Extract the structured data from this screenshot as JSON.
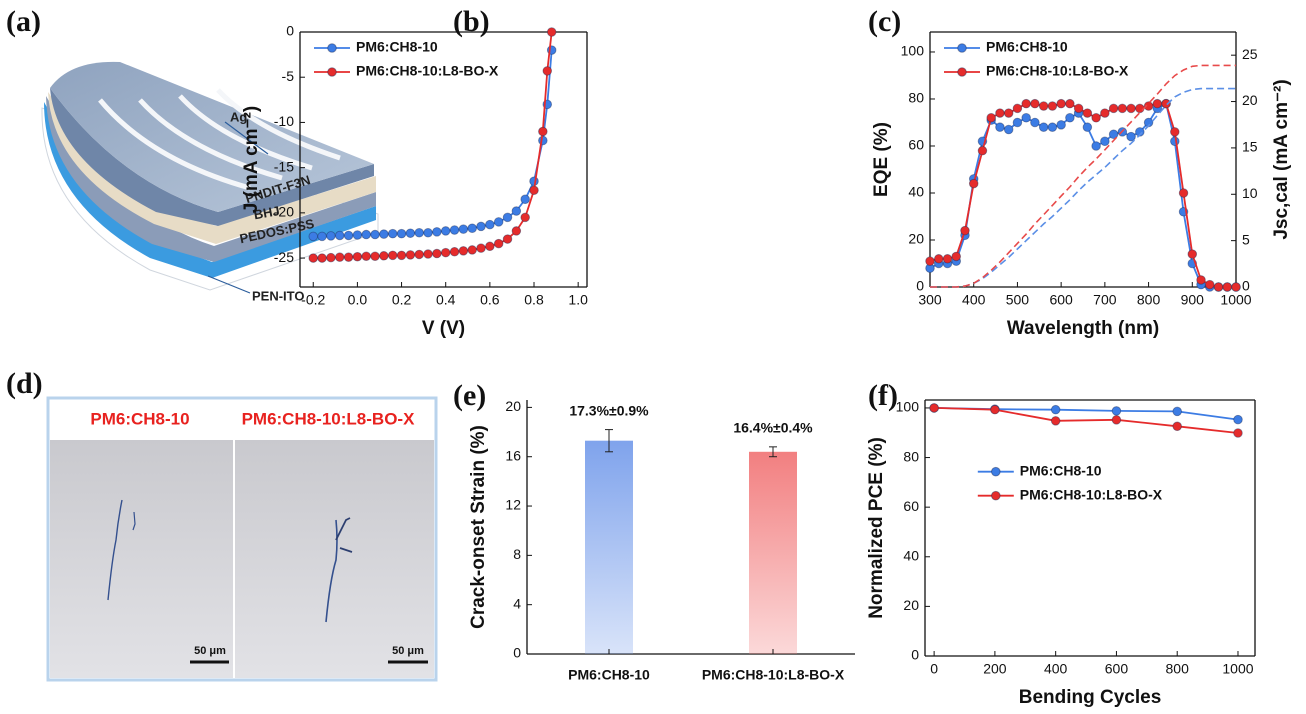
{
  "panel_labels": [
    "(a)",
    "(b)",
    "(c)",
    "(d)",
    "(e)",
    "(f)"
  ],
  "device_diagram": {
    "layers": [
      "Ag",
      "PNDIT-F3N",
      "BHJ",
      "PEDOS:PSS",
      "PEN-ITO"
    ]
  },
  "micrographs": [
    {
      "title": "PM6:CH8-10",
      "scale_bar": "50 μm"
    },
    {
      "title": "PM6:CH8-10:L8-BO-X",
      "scale_bar": "50 μm"
    }
  ],
  "chart_data": [
    {
      "type": "line",
      "x_label": "V (V)",
      "y_label": "J (mA cm⁻²)",
      "x": [
        -0.2,
        -0.16,
        -0.12,
        -0.08,
        -0.04,
        0,
        0.04,
        0.08,
        0.12,
        0.16,
        0.2,
        0.24,
        0.28,
        0.32,
        0.36,
        0.4,
        0.44,
        0.48,
        0.52,
        0.56,
        0.6,
        0.64,
        0.68,
        0.72,
        0.76,
        0.8,
        0.84,
        0.86,
        0.88
      ],
      "series": [
        {
          "name": "PM6:CH8-10",
          "color": "#3c7ce4",
          "values": [
            -22.6,
            -22.6,
            -22.55,
            -22.5,
            -22.5,
            -22.45,
            -22.4,
            -22.4,
            -22.35,
            -22.3,
            -22.3,
            -22.25,
            -22.2,
            -22.2,
            -22.1,
            -22.0,
            -21.9,
            -21.8,
            -21.7,
            -21.5,
            -21.3,
            -21.0,
            -20.5,
            -19.8,
            -18.5,
            -16.5,
            -12.0,
            -8.0,
            -2.0
          ]
        },
        {
          "name": "PM6:CH8-10:L8-BO-X",
          "color": "#e52b2b",
          "values": [
            -25.0,
            -25.0,
            -24.95,
            -24.9,
            -24.9,
            -24.85,
            -24.8,
            -24.8,
            -24.75,
            -24.7,
            -24.7,
            -24.65,
            -24.6,
            -24.55,
            -24.5,
            -24.4,
            -24.3,
            -24.2,
            -24.1,
            -23.9,
            -23.7,
            -23.4,
            -22.9,
            -22.0,
            -20.5,
            -17.5,
            -11.0,
            -4.3,
            0
          ]
        }
      ],
      "xlim": [
        -0.26,
        1.04
      ],
      "ylim": [
        -28.2,
        0
      ],
      "xticks": [
        -0.2,
        {
          "value": 0,
          "label": "0.0"
        },
        0.2,
        0.4,
        0.6,
        0.8,
        {
          "value": 1,
          "label": "1.0"
        }
      ],
      "yticks": [
        0,
        -5,
        -10,
        -15,
        -20,
        -25
      ],
      "legend": "upper left"
    },
    {
      "type": "line",
      "x_label": "Wavelength (nm)",
      "y_label": "EQE (%)",
      "y2_label": "Jsc,cal (mA cm⁻²)",
      "x": [
        300,
        320,
        340,
        360,
        380,
        400,
        420,
        440,
        460,
        480,
        500,
        520,
        540,
        560,
        580,
        600,
        620,
        640,
        660,
        680,
        700,
        720,
        740,
        760,
        780,
        800,
        820,
        840,
        860,
        880,
        900,
        920,
        940,
        960,
        980,
        1000
      ],
      "series": [
        {
          "name": "PM6:CH8-10",
          "color": "#3c7ce4",
          "values": [
            8,
            10,
            10,
            11,
            22,
            46,
            62,
            71,
            68,
            67,
            70,
            72,
            70,
            68,
            68,
            69,
            72,
            74,
            68,
            60,
            62,
            65,
            66,
            64,
            66,
            70,
            76,
            78,
            62,
            32,
            10,
            1,
            0,
            0,
            0,
            0
          ]
        },
        {
          "name": "PM6:CH8-10:L8-BO-X",
          "color": "#e52b2b",
          "values": [
            11,
            12,
            12,
            13,
            24,
            44,
            58,
            72,
            74,
            74,
            76,
            78,
            78,
            77,
            77,
            78,
            78,
            76,
            74,
            72,
            74,
            76,
            76,
            76,
            76,
            77,
            78,
            78,
            66,
            40,
            14,
            3,
            1,
            0,
            0,
            0
          ]
        },
        {
          "color": "#5b8fe6",
          "axis": "y2",
          "line_style": "dashed",
          "values": [
            0,
            0,
            0,
            0,
            0.1,
            0.4,
            0.9,
            1.6,
            2.4,
            3.2,
            4.1,
            5.0,
            5.9,
            6.8,
            7.6,
            8.5,
            9.4,
            10.4,
            11.3,
            12.1,
            12.9,
            13.8,
            14.7,
            15.5,
            16.4,
            17.4,
            18.5,
            19.6,
            20.5,
            21.0,
            21.3,
            21.4,
            21.4,
            21.4,
            21.4,
            21.4
          ]
        },
        {
          "color": "#e84a4a",
          "axis": "y2",
          "line_style": "dashed",
          "values": [
            0,
            0,
            0,
            0,
            0.1,
            0.4,
            1.0,
            1.8,
            2.7,
            3.7,
            4.7,
            5.7,
            6.8,
            7.8,
            8.8,
            9.8,
            10.8,
            11.9,
            12.9,
            13.8,
            14.8,
            15.8,
            16.8,
            17.8,
            18.8,
            19.8,
            20.8,
            21.9,
            22.8,
            23.4,
            23.8,
            23.9,
            23.9,
            23.9,
            23.9,
            23.9
          ]
        }
      ],
      "xlim": [
        300,
        1000
      ],
      "ylim": [
        0,
        108.5
      ],
      "y2lim": [
        0,
        27.5
      ],
      "xticks": [
        300,
        400,
        500,
        600,
        700,
        800,
        900,
        1000
      ],
      "yticks": [
        0,
        20,
        40,
        60,
        80,
        100
      ],
      "y2ticks": [
        0,
        5,
        10,
        15,
        20,
        25
      ],
      "legend": "upper left"
    },
    {
      "type": "bar",
      "y_label": "Crack-onset Strain (%)",
      "categories": [
        "PM6:CH8-10",
        "PM6:CH8-10:L8-BO-X"
      ],
      "values": [
        17.3,
        16.4
      ],
      "errors": [
        0.9,
        0.4
      ],
      "value_labels": [
        "17.3%±0.9%",
        "16.4%±0.4%"
      ],
      "colors": [
        "#7fa3ec",
        "#f27f80"
      ],
      "ylim": [
        0,
        20.6
      ],
      "yticks": [
        0,
        4,
        8,
        12,
        16,
        20
      ]
    },
    {
      "type": "line",
      "x_label": "Bending Cycles",
      "y_label": "Normalized PCE (%)",
      "x": [
        0,
        200,
        400,
        600,
        800,
        1000
      ],
      "series": [
        {
          "name": "PM6:CH8-10",
          "color": "#3c7ce4",
          "values": [
            100,
            99.5,
            99.3,
            98.8,
            98.6,
            95.3
          ]
        },
        {
          "name": "PM6:CH8-10:L8-BO-X",
          "color": "#e52b2b",
          "values": [
            100,
            99.3,
            94.8,
            95.2,
            92.6,
            89.9
          ]
        }
      ],
      "xlim": [
        -30,
        1056
      ],
      "ylim": [
        0,
        103.2
      ],
      "xticks": [
        0,
        200,
        400,
        600,
        800,
        1000
      ],
      "yticks": [
        0,
        20,
        40,
        60,
        80,
        100
      ],
      "legend": "center"
    }
  ]
}
